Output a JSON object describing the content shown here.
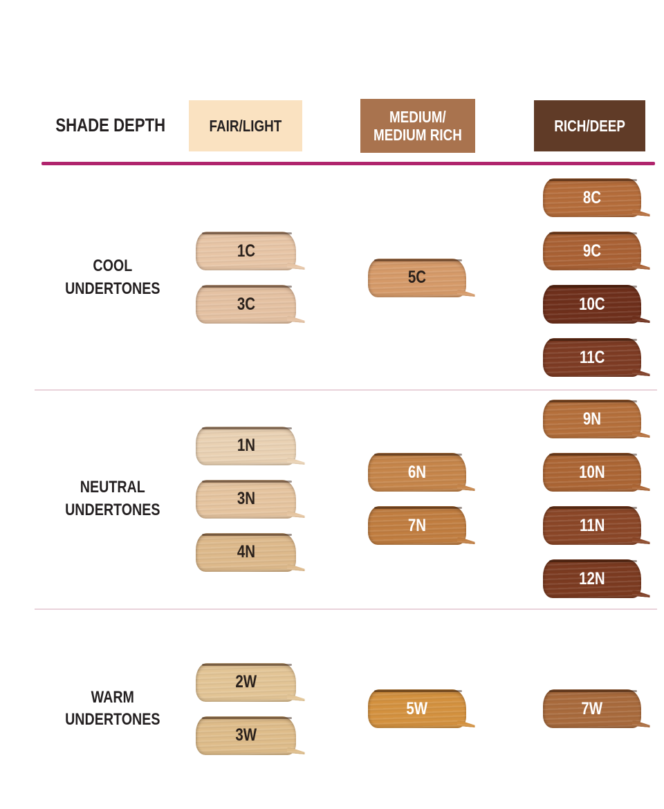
{
  "header": {
    "shade_depth_label": "SHADE DEPTH",
    "divider_color": "#b0246d",
    "columns": [
      {
        "line1": "FAIR/LIGHT",
        "line2": "",
        "bg": "#fae2c1",
        "text_color": "#231f20"
      },
      {
        "line1": "MEDIUM/",
        "line2": "MEDIUM RICH",
        "bg": "#a9734e",
        "text_color": "#ffffff"
      },
      {
        "line1": "RICH/DEEP",
        "line2": "",
        "bg": "#603b27",
        "text_color": "#ffffff"
      }
    ]
  },
  "separator_color": "#e9d2da",
  "rows": [
    {
      "label_line1": "COOL",
      "label_line2": "UNDERTONES",
      "fair_light": [
        {
          "label": "1C",
          "color": "#e7c5a6",
          "text_color": "#2a211c"
        },
        {
          "label": "3C",
          "color": "#e4c1a2",
          "text_color": "#2a211c"
        }
      ],
      "medium": [
        {
          "label": "5C",
          "color": "#d59a69",
          "text_color": "#2a211c"
        }
      ],
      "rich_deep": [
        {
          "label": "8C",
          "color": "#b46c3a",
          "text_color": "#ffffff"
        },
        {
          "label": "9C",
          "color": "#a96134",
          "text_color": "#ffffff"
        },
        {
          "label": "10C",
          "color": "#6e2f1b",
          "text_color": "#ffffff"
        },
        {
          "label": "11C",
          "color": "#7d3b23",
          "text_color": "#ffffff"
        }
      ]
    },
    {
      "label_line1": "NEUTRAL",
      "label_line2": "UNDERTONES",
      "fair_light": [
        {
          "label": "1N",
          "color": "#e9d1b3",
          "text_color": "#2a211c"
        },
        {
          "label": "3N",
          "color": "#e5c49f",
          "text_color": "#2a211c"
        },
        {
          "label": "4N",
          "color": "#ddb98b",
          "text_color": "#2a211c"
        }
      ],
      "medium": [
        {
          "label": "6N",
          "color": "#c5854a",
          "text_color": "#ffffff"
        },
        {
          "label": "7N",
          "color": "#c07d40",
          "text_color": "#ffffff"
        }
      ],
      "rich_deep": [
        {
          "label": "9N",
          "color": "#b46f3b",
          "text_color": "#ffffff"
        },
        {
          "label": "10N",
          "color": "#ab6534",
          "text_color": "#ffffff"
        },
        {
          "label": "11N",
          "color": "#8a4627",
          "text_color": "#ffffff"
        },
        {
          "label": "12N",
          "color": "#7b3a20",
          "text_color": "#ffffff"
        }
      ]
    },
    {
      "label_line1": "WARM",
      "label_line2": "UNDERTONES",
      "fair_light": [
        {
          "label": "2W",
          "color": "#e2c495",
          "text_color": "#2a211c"
        },
        {
          "label": "3W",
          "color": "#debc8a",
          "text_color": "#2a211c"
        }
      ],
      "medium": [
        {
          "label": "5W",
          "color": "#d3913f",
          "text_color": "#ffffff"
        }
      ],
      "rich_deep": [
        {
          "label": "7W",
          "color": "#a86a3c",
          "text_color": "#ffffff"
        }
      ]
    }
  ],
  "chart_data": {
    "type": "table",
    "title": "Foundation shade matrix by undertone and shade depth",
    "row_header": "SHADE DEPTH",
    "columns": [
      "FAIR/LIGHT",
      "MEDIUM/MEDIUM RICH",
      "RICH/DEEP"
    ],
    "rows": [
      {
        "undertone": "COOL UNDERTONES",
        "fair_light": [
          "1C",
          "3C"
        ],
        "medium": [
          "5C"
        ],
        "rich_deep": [
          "8C",
          "9C",
          "10C",
          "11C"
        ]
      },
      {
        "undertone": "NEUTRAL UNDERTONES",
        "fair_light": [
          "1N",
          "3N",
          "4N"
        ],
        "medium": [
          "6N",
          "7N"
        ],
        "rich_deep": [
          "9N",
          "10N",
          "11N",
          "12N"
        ]
      },
      {
        "undertone": "WARM UNDERTONES",
        "fair_light": [
          "2W",
          "3W"
        ],
        "medium": [
          "5W"
        ],
        "rich_deep": [
          "7W"
        ]
      }
    ]
  }
}
